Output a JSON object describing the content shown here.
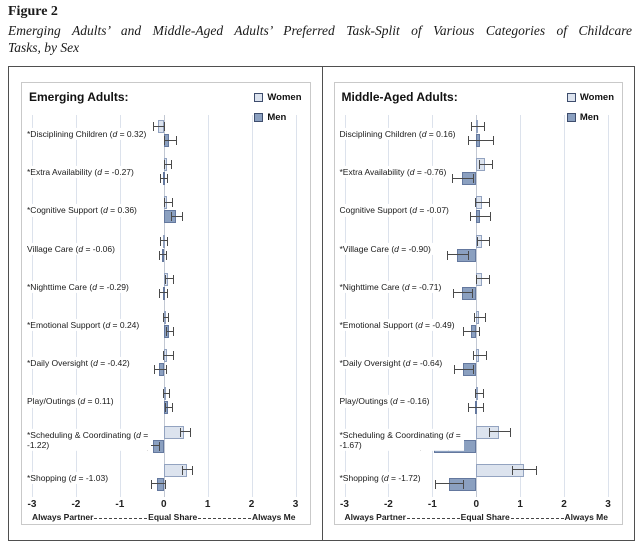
{
  "header": {
    "figure_label": "Figure 2",
    "title_line1": "Emerging Adults’ and Middle-Aged Adults’ Preferred Task-Split of Various Categories of Childcare",
    "title_line2": "Tasks, by Sex"
  },
  "colors": {
    "women_fill": "#dce3ee",
    "women_border": "#93a3c0",
    "men_fill": "#8ba0c0",
    "men_border": "#64789e",
    "legend_swatch_border": "#3e4d6d",
    "error_bar": "#4a4a4a",
    "gridline": "#dce2ec",
    "zero_line": "#c2c8d3",
    "outer_border": "#4f4f4f",
    "inner_border": "#c9c9c9"
  },
  "d_format": {
    "open": " (",
    "sym": "d",
    "eq": " = ",
    "close": ")"
  },
  "chart_data": [
    {
      "type": "bar",
      "orientation": "horizontal",
      "panel_title": "Emerging Adults:",
      "legend_position": "top-right",
      "grid": true,
      "xlim": [
        -3,
        3
      ],
      "xticks": [
        "-3",
        "-2",
        "-1",
        "0",
        "1",
        "2",
        "3"
      ],
      "xlabel_parts": [
        "Always Partner",
        "Equal Share",
        "Always Me"
      ],
      "xlabel_connector": "dashed",
      "legend": [
        {
          "name": "Women",
          "color": "#dce3ee"
        },
        {
          "name": "Men",
          "color": "#8ba0c0"
        }
      ],
      "rows": [
        {
          "label": "*Disciplining Children",
          "d": "0.32",
          "women": -0.13,
          "women_err": 0.12,
          "men": 0.13,
          "men_err": 0.12
        },
        {
          "label": "*Extra Availability",
          "d": "-0.27",
          "women": 0.07,
          "women_err": 0.07,
          "men": -0.02,
          "men_err": 0.06
        },
        {
          "label": "*Cognitive Support",
          "d": "0.36",
          "women": 0.08,
          "women_err": 0.08,
          "men": 0.28,
          "men_err": 0.12
        },
        {
          "label": "Village Care",
          "d": "-0.06",
          "women": -0.02,
          "women_err": 0.06,
          "men": -0.04,
          "men_err": 0.07
        },
        {
          "label": "*Nighttime Care",
          "d": "-0.29",
          "women": 0.1,
          "women_err": 0.08,
          "men": -0.02,
          "men_err": 0.08
        },
        {
          "label": "*Emotional Support",
          "d": "0.24",
          "women": 0.03,
          "women_err": 0.05,
          "men": 0.11,
          "men_err": 0.07
        },
        {
          "label": "*Daily Oversight",
          "d": "-0.42",
          "women": 0.08,
          "women_err": 0.1,
          "men": -0.1,
          "men_err": 0.13
        },
        {
          "label": "Play/Outings",
          "d": "0.11",
          "women": 0.04,
          "women_err": 0.05,
          "men": 0.1,
          "men_err": 0.07
        },
        {
          "label": "*Scheduling & Coordinating",
          "d": "-1.22",
          "women": 0.47,
          "women_err": 0.11,
          "men": -0.25,
          "men_err": 0.13
        },
        {
          "label": "*Shopping",
          "d": "-1.03",
          "women": 0.52,
          "women_err": 0.11,
          "men": -0.15,
          "men_err": 0.15
        }
      ]
    },
    {
      "type": "bar",
      "orientation": "horizontal",
      "panel_title": "Middle-Aged Adults:",
      "legend_position": "top-right",
      "grid": true,
      "xlim": [
        -3,
        3
      ],
      "xticks": [
        "-3",
        "-2",
        "-1",
        "0",
        "1",
        "2",
        "3"
      ],
      "xlabel_parts": [
        "Always Partner",
        "Equal Share",
        "Always Me"
      ],
      "xlabel_connector": "dashed",
      "legend": [
        {
          "name": "Women",
          "color": "#dce3ee"
        },
        {
          "name": "Men",
          "color": "#8ba0c0"
        }
      ],
      "rows": [
        {
          "label": "Disciplining Children",
          "d": "0.16",
          "women": 0.02,
          "women_err": 0.14,
          "men": 0.08,
          "men_err": 0.27
        },
        {
          "label": "*Extra Availability",
          "d": "-0.76",
          "women": 0.2,
          "women_err": 0.14,
          "men": -0.32,
          "men_err": 0.23
        },
        {
          "label": "Cognitive Support",
          "d": "-0.07",
          "women": 0.12,
          "women_err": 0.15,
          "men": 0.08,
          "men_err": 0.22
        },
        {
          "label": "*Village Care",
          "d": "-0.90",
          "women": 0.14,
          "women_err": 0.13,
          "men": -0.44,
          "men_err": 0.22
        },
        {
          "label": "*Nighttime Care",
          "d": "-0.71",
          "women": 0.13,
          "women_err": 0.14,
          "men": -0.33,
          "men_err": 0.2
        },
        {
          "label": "*Emotional Support",
          "d": "-0.49",
          "women": 0.06,
          "women_err": 0.12,
          "men": -0.13,
          "men_err": 0.17
        },
        {
          "label": "*Daily Oversight",
          "d": "-0.64",
          "women": 0.06,
          "women_err": 0.13,
          "men": -0.3,
          "men_err": 0.2
        },
        {
          "label": "Play/Outings",
          "d": "-0.16",
          "women": 0.05,
          "women_err": 0.08,
          "men": -0.02,
          "men_err": 0.16
        },
        {
          "label": "*Scheduling & Coordinating",
          "d": "-1.67",
          "women": 0.51,
          "women_err": 0.23,
          "men": -0.97,
          "men_err": 0.3
        },
        {
          "label": "*Shopping",
          "d": "-1.72",
          "women": 1.08,
          "women_err": 0.26,
          "men": -0.63,
          "men_err": 0.3
        }
      ]
    }
  ]
}
